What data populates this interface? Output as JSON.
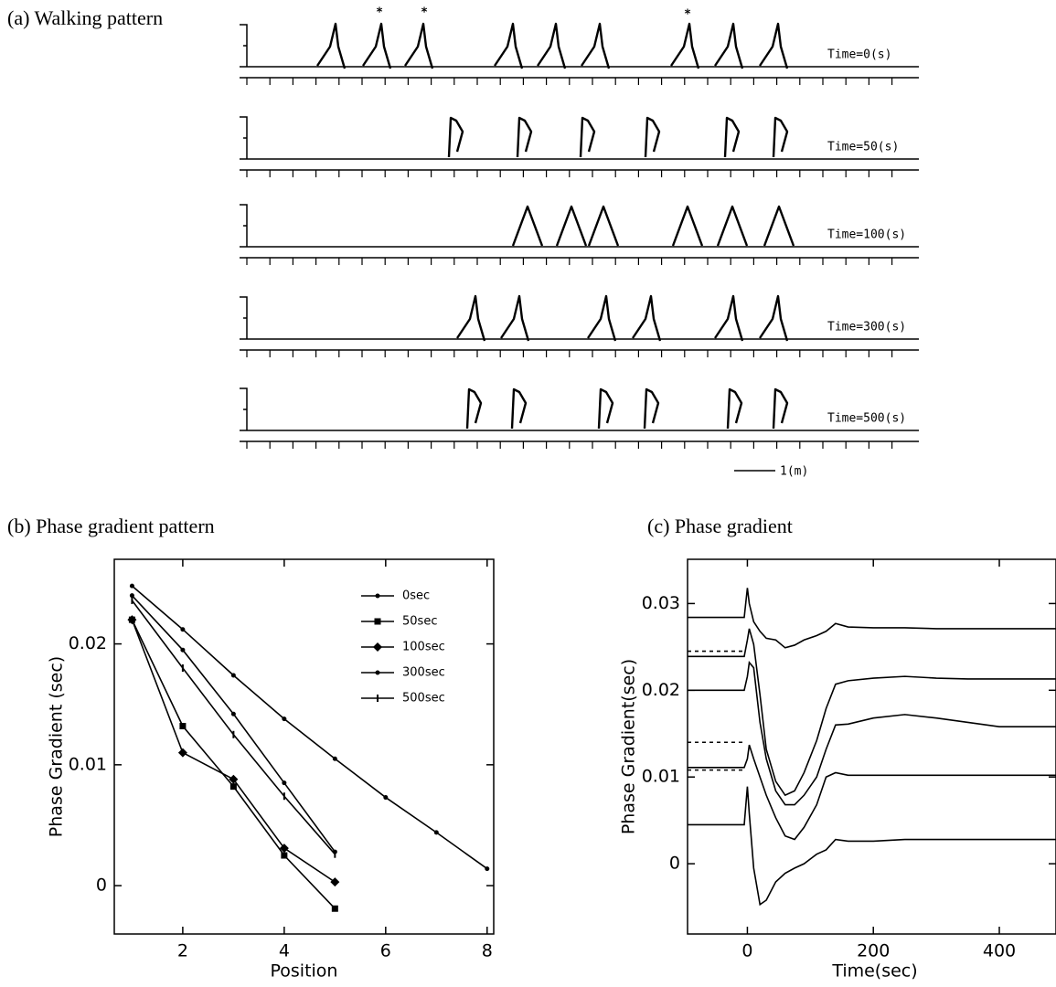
{
  "chart_data": [
    {
      "type": "walking",
      "title": "(a) Walking pattern",
      "rows": [
        "Time=0(s)",
        "Time=50(s)",
        "Time=100(s)",
        "Time=300(s)",
        "Time=500(s)"
      ],
      "annotations": [
        "*",
        "*",
        "*"
      ],
      "scale_label": "1(m)"
    },
    {
      "type": "line",
      "title": "(b) Phase gradient pattern",
      "xlabel": "Position",
      "ylabel": "Phase Gradient (sec)",
      "xlim": [
        0.65,
        8.13
      ],
      "xticks": [
        2,
        4,
        6,
        8
      ],
      "ylim": [
        -0.004,
        0.027
      ],
      "yticks": [
        0,
        0.01,
        0.02
      ],
      "legend": "upper right",
      "series": [
        {
          "name": "0sec",
          "color": "#000000",
          "marker": "dot",
          "x": [
            1,
            2,
            3,
            4,
            5,
            6,
            7,
            8
          ],
          "values": [
            0.0248,
            0.0212,
            0.0174,
            0.0138,
            0.0105,
            0.0073,
            0.0044,
            0.0014
          ]
        },
        {
          "name": "50sec",
          "color": "#000000",
          "marker": "square",
          "x": [
            1,
            2,
            3,
            4,
            5
          ],
          "values": [
            0.022,
            0.0132,
            0.0082,
            0.0025,
            -0.0019
          ]
        },
        {
          "name": "100sec",
          "color": "#000000",
          "marker": "diamond",
          "x": [
            1,
            2,
            3,
            4,
            5
          ],
          "values": [
            0.022,
            0.011,
            0.0088,
            0.0031,
            0.0003
          ]
        },
        {
          "name": "300sec",
          "color": "#000000",
          "marker": "dot",
          "x": [
            1,
            2,
            3,
            4,
            5
          ],
          "values": [
            0.024,
            0.0195,
            0.0142,
            0.0085,
            0.0028
          ]
        },
        {
          "name": "500sec",
          "color": "#000000",
          "marker": "tick",
          "x": [
            1,
            2,
            3,
            4,
            5
          ],
          "values": [
            0.0236,
            0.018,
            0.0125,
            0.0074,
            0.0026
          ]
        }
      ]
    },
    {
      "type": "line",
      "title": "(c) Phase gradient",
      "xlabel": "Time(sec)",
      "ylabel": "Phase Gradient(sec)",
      "xlim": [
        -95,
        490
      ],
      "xticks": [
        0,
        200,
        400
      ],
      "ylim": [
        -0.0081,
        0.0351
      ],
      "yticks": [
        0,
        0.01,
        0.02,
        0.03
      ],
      "x": [
        -95,
        -5,
        0,
        3,
        10,
        20,
        30,
        45,
        60,
        75,
        90,
        110,
        125,
        140,
        160,
        200,
        250,
        300,
        350,
        400,
        490
      ],
      "series": [
        {
          "color": "#000000",
          "values": [
            0.0284,
            0.0284,
            0.0318,
            0.03,
            0.0279,
            0.0268,
            0.026,
            0.0258,
            0.0249,
            0.0252,
            0.0258,
            0.0263,
            0.0268,
            0.0277,
            0.0273,
            0.0272,
            0.0272,
            0.0271,
            0.0271,
            0.0271,
            0.0271
          ]
        },
        {
          "color": "#000000",
          "values": [
            0.0239,
            0.0239,
            0.0258,
            0.0271,
            0.0253,
            0.0195,
            0.0132,
            0.0095,
            0.0079,
            0.0084,
            0.0105,
            0.0142,
            0.0179,
            0.0207,
            0.0211,
            0.0214,
            0.0216,
            0.0214,
            0.0213,
            0.0213,
            0.0213
          ]
        },
        {
          "color": "#000000",
          "values": [
            0.02,
            0.02,
            0.0216,
            0.0232,
            0.0226,
            0.0163,
            0.0121,
            0.0084,
            0.0068,
            0.0068,
            0.0079,
            0.01,
            0.0132,
            0.016,
            0.0161,
            0.0168,
            0.0172,
            0.0168,
            0.0163,
            0.0158,
            0.0158
          ]
        },
        {
          "color": "#000000",
          "values": [
            0.0111,
            0.0111,
            0.0121,
            0.0137,
            0.0121,
            0.01,
            0.0079,
            0.0053,
            0.0032,
            0.0028,
            0.0042,
            0.0068,
            0.01,
            0.0105,
            0.0102,
            0.0102,
            0.0102,
            0.0102,
            0.0102,
            0.0102,
            0.0102
          ]
        },
        {
          "color": "#000000",
          "values": [
            0.0045,
            0.0045,
            0.0089,
            0.0058,
            -0.0005,
            -0.0047,
            -0.0042,
            -0.0021,
            -0.0011,
            -0.0005,
            0,
            0.0011,
            0.0016,
            0.0028,
            0.0026,
            0.0026,
            0.0028,
            0.0028,
            0.0028,
            0.0028,
            0.0028
          ]
        },
        {
          "color": "#000000",
          "dash": true,
          "values": [
            0.0245,
            0.0245,
            null,
            null,
            null,
            null,
            null,
            null,
            null,
            null,
            null,
            null,
            null,
            null,
            null,
            null,
            null,
            null,
            null,
            null,
            null
          ]
        },
        {
          "color": "#000000",
          "dash": true,
          "values": [
            0.014,
            0.014,
            null,
            null,
            null,
            null,
            null,
            null,
            null,
            null,
            null,
            null,
            null,
            null,
            null,
            null,
            null,
            null,
            null,
            null,
            null
          ]
        },
        {
          "color": "#000000",
          "dash": true,
          "values": [
            0.0108,
            0.0108,
            null,
            null,
            null,
            null,
            null,
            null,
            null,
            null,
            null,
            null,
            null,
            null,
            null,
            null,
            null,
            null,
            null,
            null,
            null
          ]
        }
      ]
    }
  ]
}
